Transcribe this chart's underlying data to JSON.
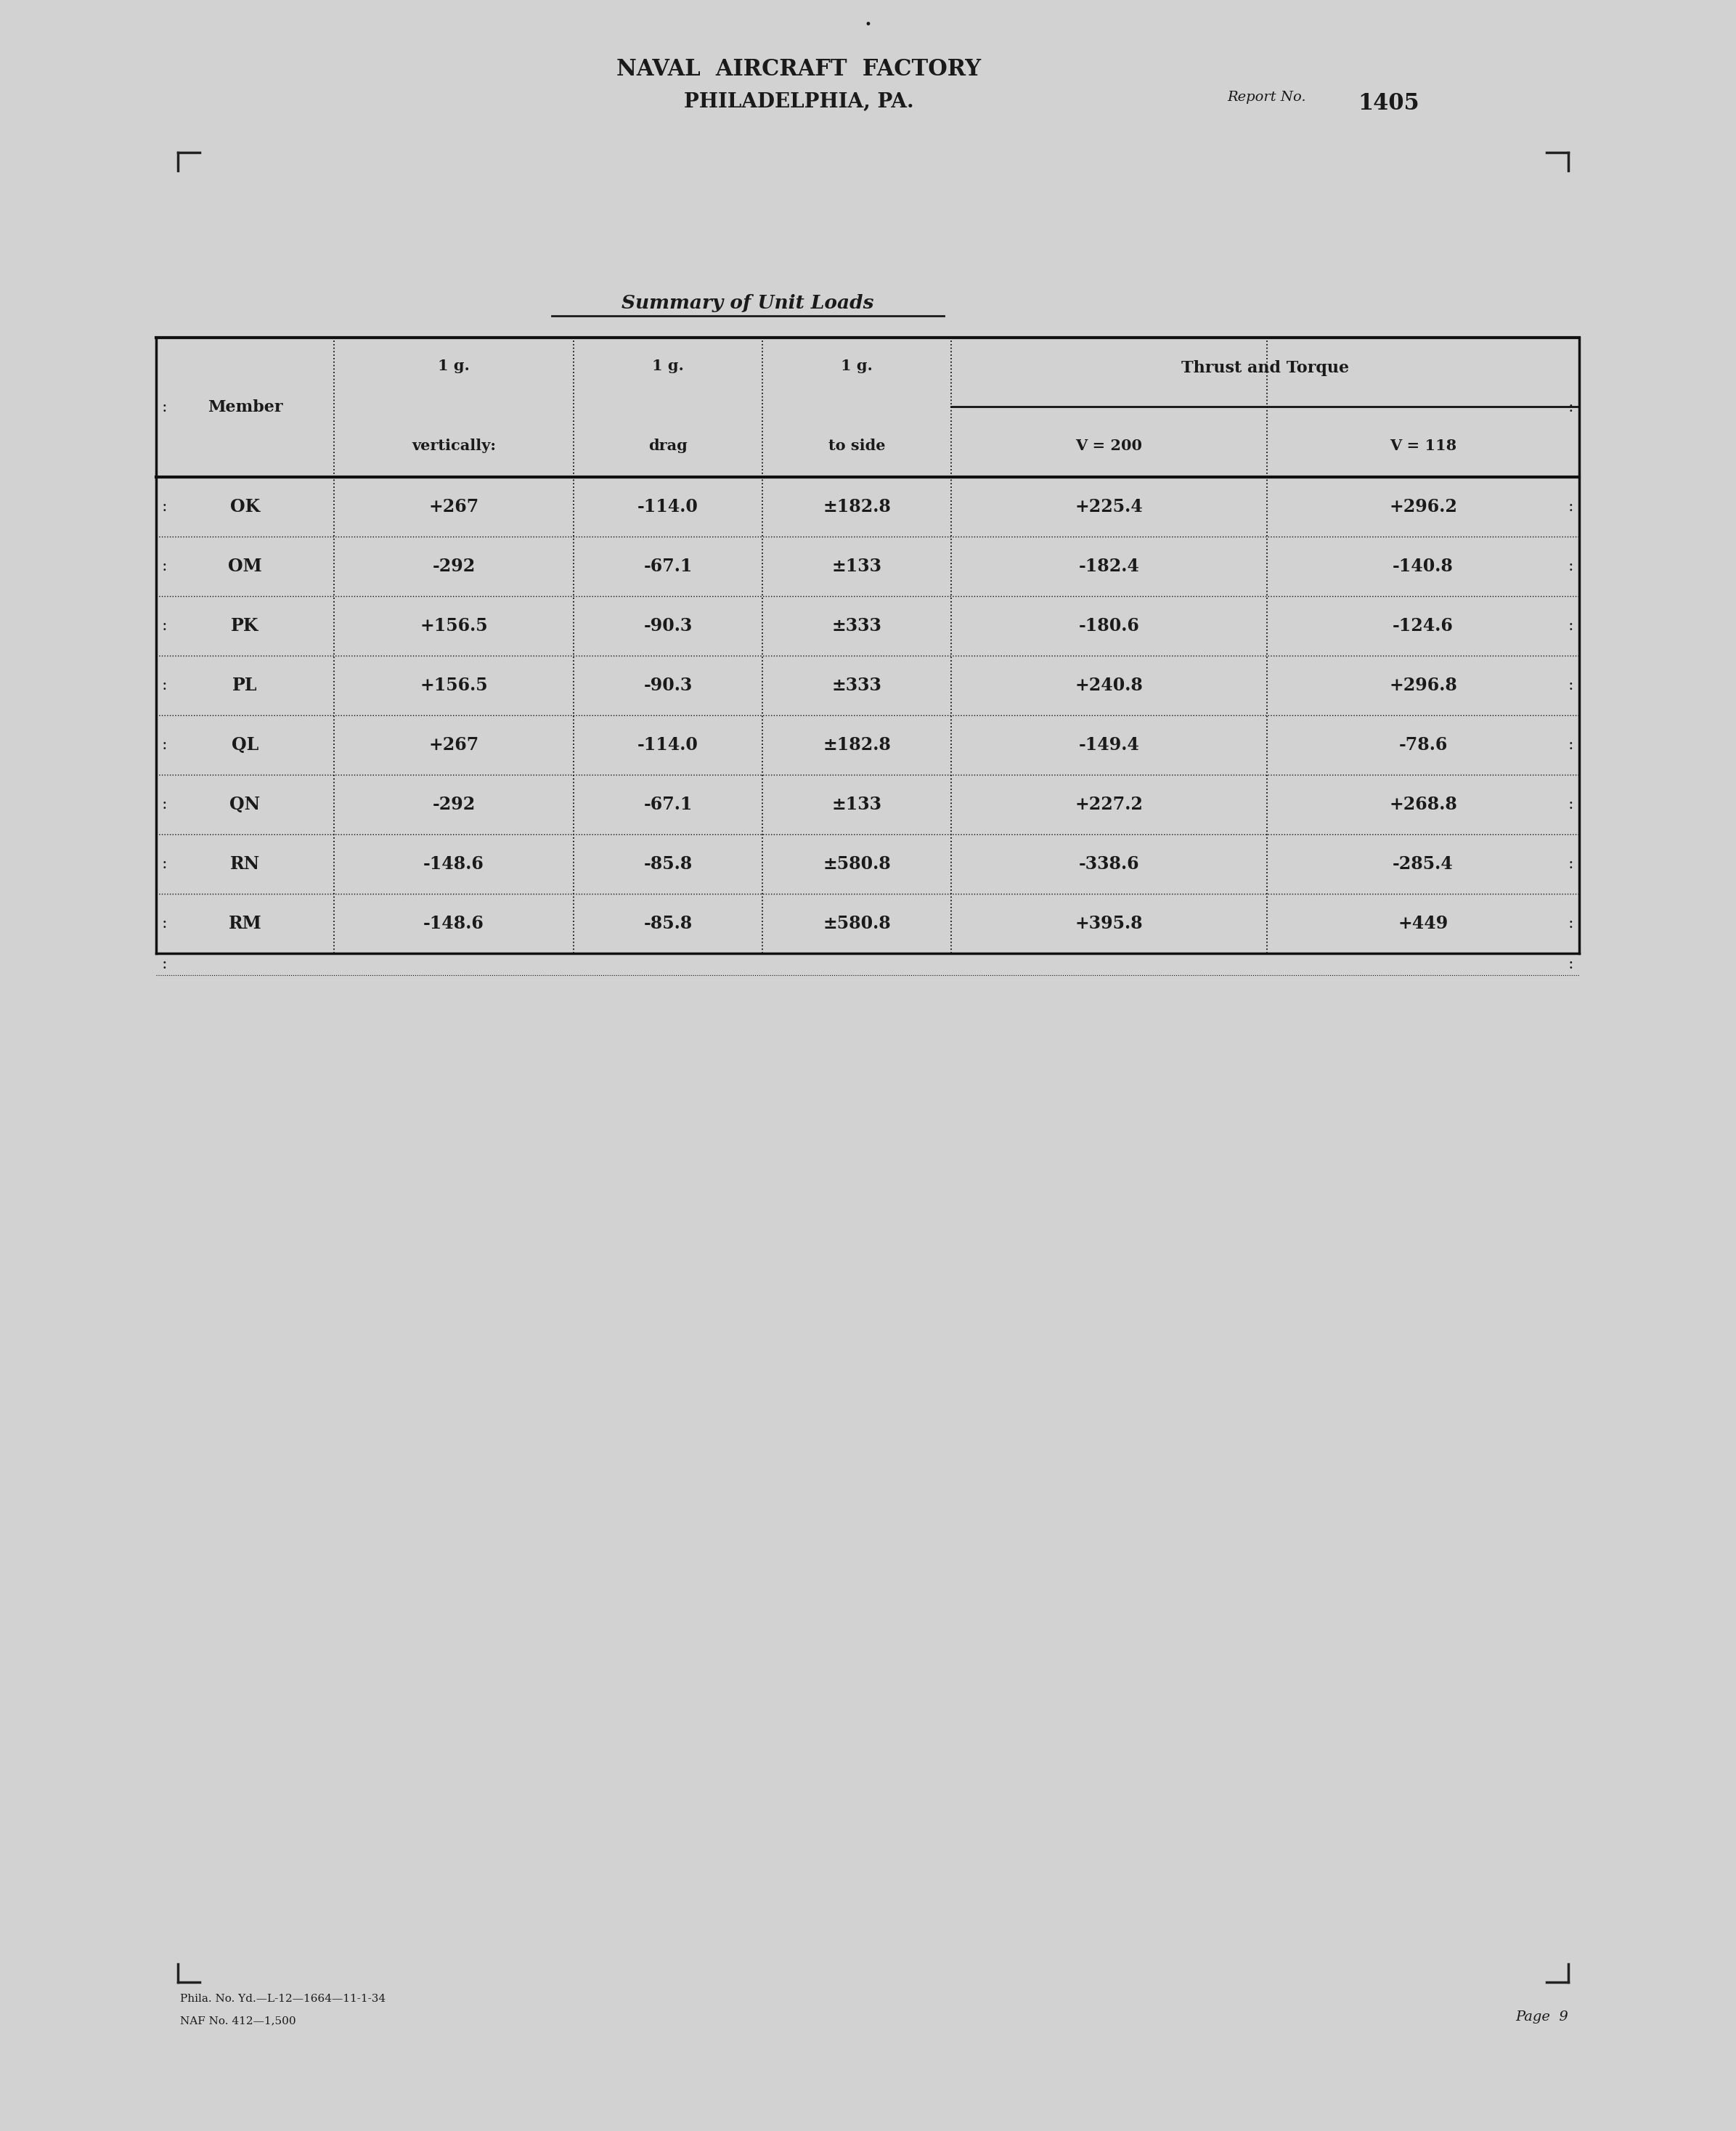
{
  "title_line1": "NAVAL  AIRCRAFT  FACTORY",
  "title_line2": "PHILADELPHIA, PA.",
  "report_label": "Report No.",
  "report_number": "1405",
  "table_title": "Summary of Unit Loads",
  "page_number": "9",
  "footer_line1": "Phila. No. Yd.—L-12—1664—11-1-34",
  "footer_line2": "NAF No. 412—1,500",
  "rows": [
    [
      "OK",
      "+267",
      "-114.0",
      "±182.8",
      "+225.4",
      "+296.2"
    ],
    [
      "OM",
      "-292",
      "-67.1",
      "±133",
      "-182.4",
      "-140.8"
    ],
    [
      "PK",
      "+156.5",
      "-90.3",
      "±333",
      "-180.6",
      "-124.6"
    ],
    [
      "PL",
      "+156.5",
      "-90.3",
      "±333",
      "+240.8",
      "+296.8"
    ],
    [
      "QL",
      "+267",
      "-114.0",
      "±182.8",
      "-149.4",
      "-78.6"
    ],
    [
      "QN",
      "-292",
      "-67.1",
      "±133",
      "+227.2",
      "+268.8"
    ],
    [
      "RN",
      "-148.6",
      "-85.8",
      "±580.8",
      "-338.6",
      "-285.4"
    ],
    [
      "RM",
      "-148.6",
      "-85.8",
      "±580.8",
      "+395.8",
      "+449"
    ]
  ],
  "bg_color": "#d2d2d2",
  "text_color": "#1a1a1a",
  "table_line_color": "#111111"
}
